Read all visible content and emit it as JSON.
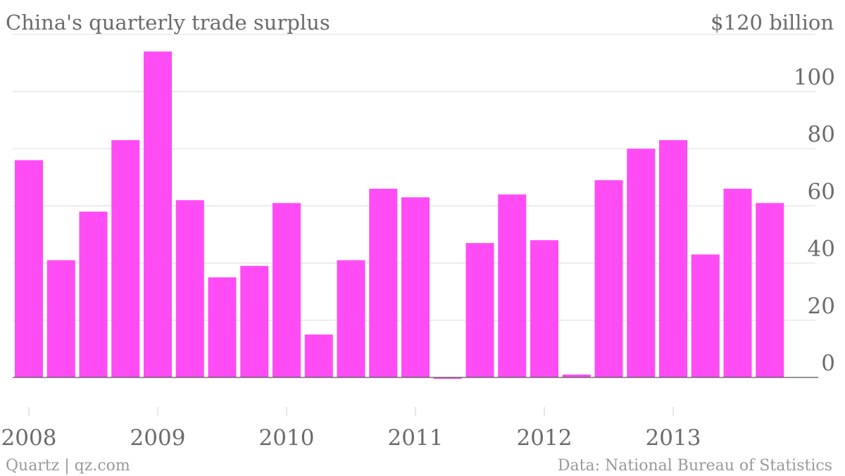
{
  "chart_data": {
    "type": "bar",
    "title": "China's quarterly trade surplus",
    "unit_label": "$120 billion",
    "source": "Data: National Bureau of Statistics",
    "credit": "Quartz | qz.com",
    "colors": {
      "bar": "#ff4cf5",
      "grid": "#e1e1e1",
      "text": "#6b6b6b"
    },
    "grid": true,
    "ylim": [
      0,
      120
    ],
    "y_ticks": [
      0,
      20,
      40,
      60,
      80,
      100
    ],
    "x_tick_labels": [
      "2008",
      "2009",
      "2010",
      "2011",
      "2012",
      "2013"
    ],
    "categories": [
      "2008 Q1",
      "2008 Q2",
      "2008 Q3",
      "2008 Q4",
      "2009 Q1",
      "2009 Q2",
      "2009 Q3",
      "2009 Q4",
      "2010 Q1",
      "2010 Q2",
      "2010 Q3",
      "2010 Q4",
      "2011 Q1",
      "2011 Q2",
      "2011 Q3",
      "2011 Q4",
      "2012 Q1",
      "2012 Q2",
      "2012 Q3",
      "2012 Q4",
      "2013 Q1",
      "2013 Q2",
      "2013 Q3",
      "2013 Q4"
    ],
    "values": [
      76,
      41,
      58,
      83,
      114,
      62,
      35,
      39,
      61,
      15,
      41,
      66,
      63,
      -0.5,
      47,
      64,
      48,
      1,
      69,
      80,
      83,
      43,
      66,
      61
    ]
  }
}
